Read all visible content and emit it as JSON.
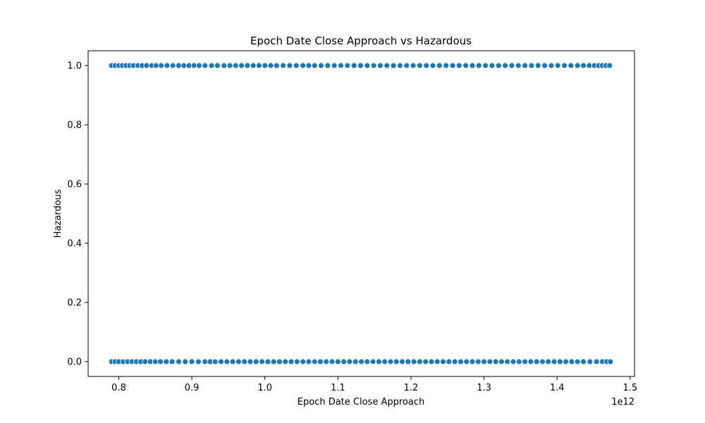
{
  "chart_data": {
    "type": "scatter",
    "title": "Epoch Date Close Approach vs Hazardous",
    "xlabel": "Epoch Date Close Approach",
    "ylabel": "Hazardous",
    "x_offset_label": "1e12",
    "xlim": [
      0.758,
      1.506
    ],
    "ylim": [
      -0.05,
      1.05
    ],
    "xticks": [
      0.8,
      0.9,
      1.0,
      1.1,
      1.2,
      1.3,
      1.4,
      1.5
    ],
    "xtick_labels": [
      "0.8",
      "0.9",
      "1.0",
      "1.1",
      "1.2",
      "1.3",
      "1.4",
      "1.5"
    ],
    "yticks": [
      0.0,
      0.2,
      0.4,
      0.6,
      0.8,
      1.0
    ],
    "ytick_labels": [
      "0.0",
      "0.2",
      "0.4",
      "0.6",
      "0.8",
      "1.0"
    ],
    "grid": false,
    "legend": "none",
    "marker_color": "#1f77b4",
    "series": [
      {
        "y": 1,
        "x": [
          0.79,
          0.795,
          0.8,
          0.805,
          0.81,
          0.815,
          0.82,
          0.826,
          0.832,
          0.838,
          0.845,
          0.851,
          0.858,
          0.866,
          0.874,
          0.882,
          0.889,
          0.896,
          0.903,
          0.91,
          0.918,
          0.927,
          0.935,
          0.944,
          0.952,
          0.96,
          0.968,
          0.976,
          0.984,
          0.992,
          1.0,
          1.008,
          1.016,
          1.025,
          1.034,
          1.043,
          1.052,
          1.06,
          1.068,
          1.077,
          1.086,
          1.095,
          1.104,
          1.113,
          1.122,
          1.131,
          1.14,
          1.149,
          1.158,
          1.167,
          1.176,
          1.185,
          1.194,
          1.203,
          1.212,
          1.221,
          1.23,
          1.239,
          1.248,
          1.257,
          1.266,
          1.275,
          1.284,
          1.293,
          1.302,
          1.311,
          1.32,
          1.329,
          1.338,
          1.347,
          1.356,
          1.365,
          1.374,
          1.383,
          1.392,
          1.401,
          1.41,
          1.419,
          1.428,
          1.436,
          1.444,
          1.451,
          1.457,
          1.462,
          1.467,
          1.472
        ]
      },
      {
        "y": 0,
        "x": [
          0.79,
          0.795,
          0.8,
          0.806,
          0.812,
          0.818,
          0.824,
          0.83,
          0.836,
          0.843,
          0.85,
          0.857,
          0.865,
          0.873,
          0.882,
          0.891,
          0.9,
          0.909,
          0.918,
          0.925,
          0.932,
          0.94,
          0.948,
          0.956,
          0.964,
          0.972,
          0.98,
          0.988,
          0.996,
          1.004,
          1.012,
          1.02,
          1.028,
          1.036,
          1.044,
          1.052,
          1.06,
          1.068,
          1.076,
          1.084,
          1.092,
          1.1,
          1.108,
          1.116,
          1.124,
          1.132,
          1.14,
          1.148,
          1.156,
          1.164,
          1.172,
          1.18,
          1.188,
          1.196,
          1.204,
          1.212,
          1.22,
          1.228,
          1.236,
          1.244,
          1.252,
          1.26,
          1.268,
          1.276,
          1.284,
          1.292,
          1.3,
          1.308,
          1.316,
          1.324,
          1.332,
          1.34,
          1.348,
          1.356,
          1.364,
          1.372,
          1.38,
          1.388,
          1.396,
          1.404,
          1.412,
          1.42,
          1.428,
          1.436,
          1.445,
          1.454,
          1.462,
          1.468,
          1.473
        ]
      }
    ]
  }
}
